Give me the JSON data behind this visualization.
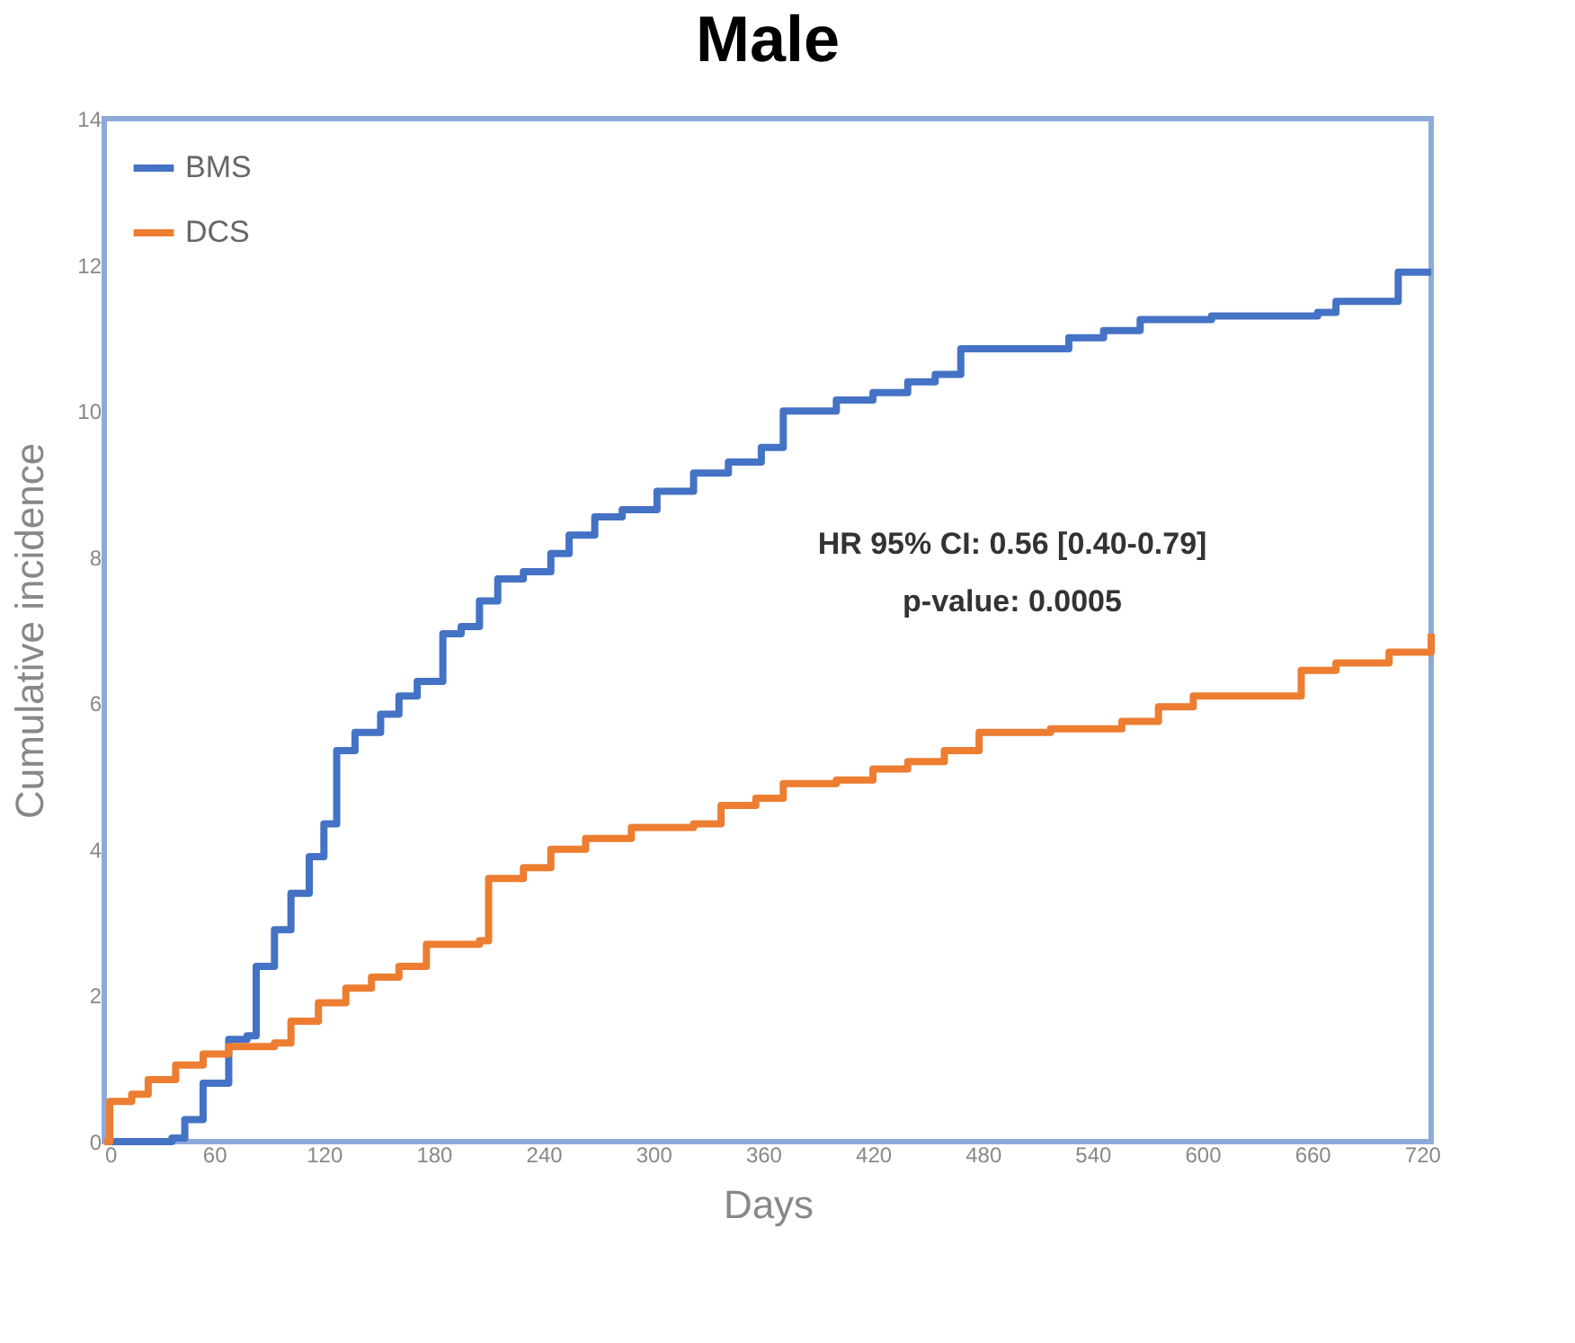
{
  "chart_data": {
    "type": "step",
    "title": "Male",
    "xlabel": "Days",
    "ylabel": "Cumulative incidence",
    "xlim": [
      0,
      725
    ],
    "xticks": [
      0,
      60,
      120,
      180,
      240,
      300,
      360,
      420,
      480,
      540,
      600,
      660,
      720
    ],
    "ylim": [
      0,
      14
    ],
    "yticks": [
      0,
      2,
      4,
      6,
      8,
      10,
      12,
      14
    ],
    "grid": false,
    "legend": "top left",
    "marker": "none",
    "line_style": "solid",
    "annotations": [
      "HR 95% CI: 0.56 [0.40-0.79]",
      "p-value: 0.0005"
    ],
    "series": [
      {
        "name": "BMS",
        "color": "#4472c4",
        "x": [
          0,
          37,
          44,
          54,
          68,
          78,
          83,
          93,
          102,
          112,
          120,
          127,
          137,
          151,
          161,
          171,
          185,
          195,
          205,
          215,
          229,
          244,
          254,
          268,
          283,
          302,
          322,
          341,
          359,
          371,
          400,
          420,
          439,
          454,
          468,
          498,
          527,
          546,
          566,
          605,
          663,
          673,
          702,
          707,
          725
        ],
        "values": [
          0,
          0.05,
          0.3,
          0.8,
          1.4,
          1.45,
          2.4,
          2.9,
          3.4,
          3.9,
          4.35,
          5.35,
          5.6,
          5.85,
          6.1,
          6.3,
          6.95,
          7.05,
          7.4,
          7.7,
          7.8,
          8.05,
          8.3,
          8.55,
          8.65,
          8.9,
          9.15,
          9.3,
          9.5,
          10.0,
          10.15,
          10.25,
          10.4,
          10.5,
          10.85,
          10.85,
          11.0,
          11.1,
          11.25,
          11.3,
          11.35,
          11.5,
          11.5,
          11.9,
          11.9
        ]
      },
      {
        "name": "DCS",
        "color": "#ed7d31",
        "x": [
          0,
          3,
          15,
          24,
          39,
          54,
          68,
          93,
          102,
          117,
          132,
          146,
          161,
          176,
          205,
          210,
          229,
          244,
          263,
          288,
          322,
          337,
          356,
          371,
          400,
          420,
          439,
          459,
          478,
          517,
          556,
          576,
          595,
          634,
          654,
          673,
          702,
          725
        ],
        "values": [
          0,
          0.55,
          0.65,
          0.85,
          1.05,
          1.2,
          1.3,
          1.35,
          1.65,
          1.9,
          2.1,
          2.25,
          2.4,
          2.7,
          2.75,
          3.6,
          3.75,
          4.0,
          4.15,
          4.3,
          4.35,
          4.6,
          4.7,
          4.9,
          4.95,
          5.1,
          5.2,
          5.35,
          5.6,
          5.65,
          5.75,
          5.95,
          6.1,
          6.1,
          6.45,
          6.55,
          6.7,
          6.95
        ]
      }
    ]
  }
}
